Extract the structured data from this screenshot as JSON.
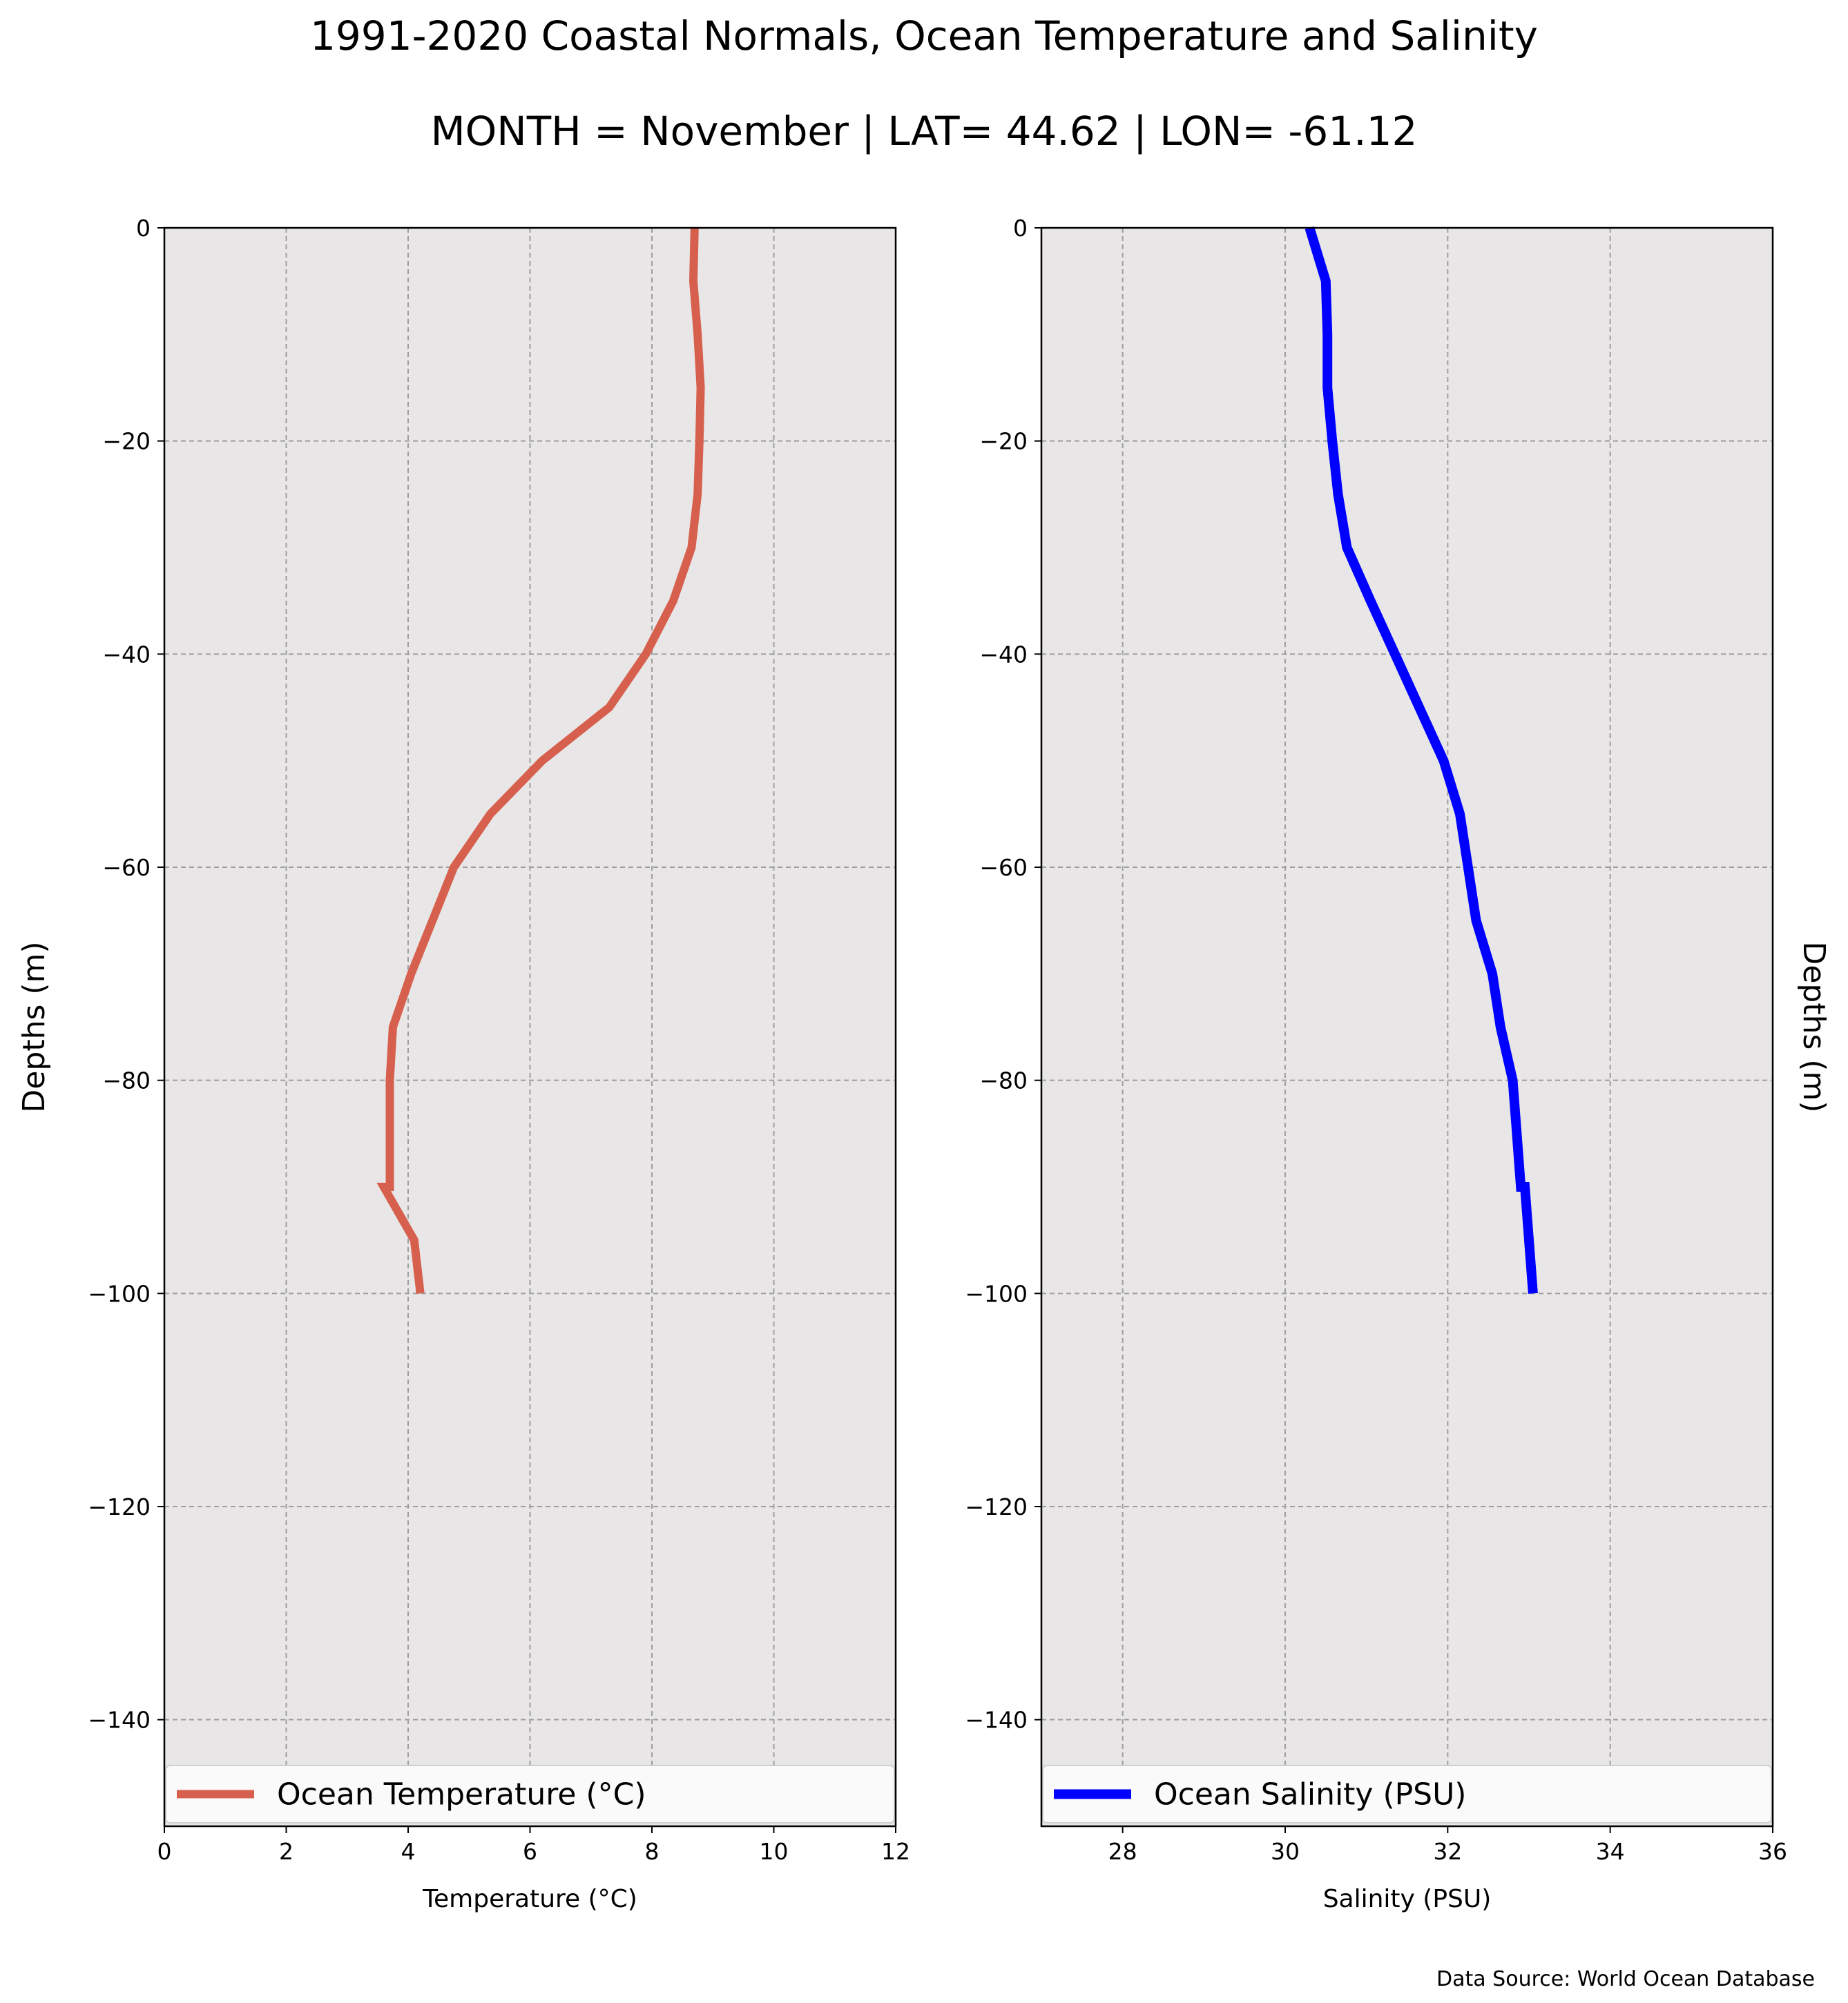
{
  "figure": {
    "title": "1991-2020 Coastal Normals, Ocean Temperature and Salinity",
    "subtitle": "MONTH = November | LAT= 44.62 | LON= -61.12",
    "source_note": "Data Source: World Ocean Database"
  },
  "chart_data": [
    {
      "type": "line",
      "xlabel": "Temperature (°C)",
      "ylabel": "Depths (m)",
      "xlim": [
        0,
        12
      ],
      "ylim": [
        -150,
        0
      ],
      "x_ticks": [
        0,
        2,
        4,
        6,
        8,
        10,
        12
      ],
      "y_ticks": [
        0,
        -20,
        -40,
        -60,
        -80,
        -100,
        -120,
        -140
      ],
      "grid": true,
      "legend": "bottom",
      "series": [
        {
          "name": "Ocean Temperature (°C)",
          "color": "#d6604d",
          "x": [
            8.7,
            8.68,
            8.75,
            8.8,
            8.78,
            8.75,
            8.65,
            8.35,
            7.9,
            7.3,
            6.2,
            5.35,
            4.75,
            4.4,
            4.05,
            3.75,
            3.7,
            3.7,
            3.7,
            3.6,
            4.1,
            4.2
          ],
          "y": [
            0,
            -5,
            -10,
            -15,
            -20,
            -25,
            -30,
            -35,
            -40,
            -45,
            -50,
            -55,
            -60,
            -65,
            -70,
            -75,
            -80,
            -85,
            -90,
            -90,
            -95,
            -100
          ]
        }
      ]
    },
    {
      "type": "line",
      "xlabel": "Salinity (PSU)",
      "ylabel": "Depths (m)",
      "xlim": [
        27,
        36
      ],
      "ylim": [
        -150,
        0
      ],
      "x_ticks": [
        28,
        30,
        32,
        34,
        36
      ],
      "y_ticks": [
        0,
        -20,
        -40,
        -60,
        -80,
        -100,
        -120,
        -140
      ],
      "grid": true,
      "legend": "bottom",
      "series": [
        {
          "name": "Ocean Salinity (PSU)",
          "color": "#0000ff",
          "x": [
            30.3,
            30.5,
            30.52,
            30.52,
            30.58,
            30.65,
            30.76,
            31.05,
            31.35,
            31.65,
            31.95,
            32.15,
            32.25,
            32.35,
            32.55,
            32.65,
            32.8,
            32.85,
            32.9,
            32.95,
            33.0,
            33.05
          ],
          "y": [
            0,
            -5,
            -10,
            -15,
            -20,
            -25,
            -30,
            -35,
            -40,
            -45,
            -50,
            -55,
            -60,
            -65,
            -70,
            -75,
            -80,
            -85,
            -90,
            -90,
            -95,
            -100
          ]
        }
      ]
    }
  ]
}
